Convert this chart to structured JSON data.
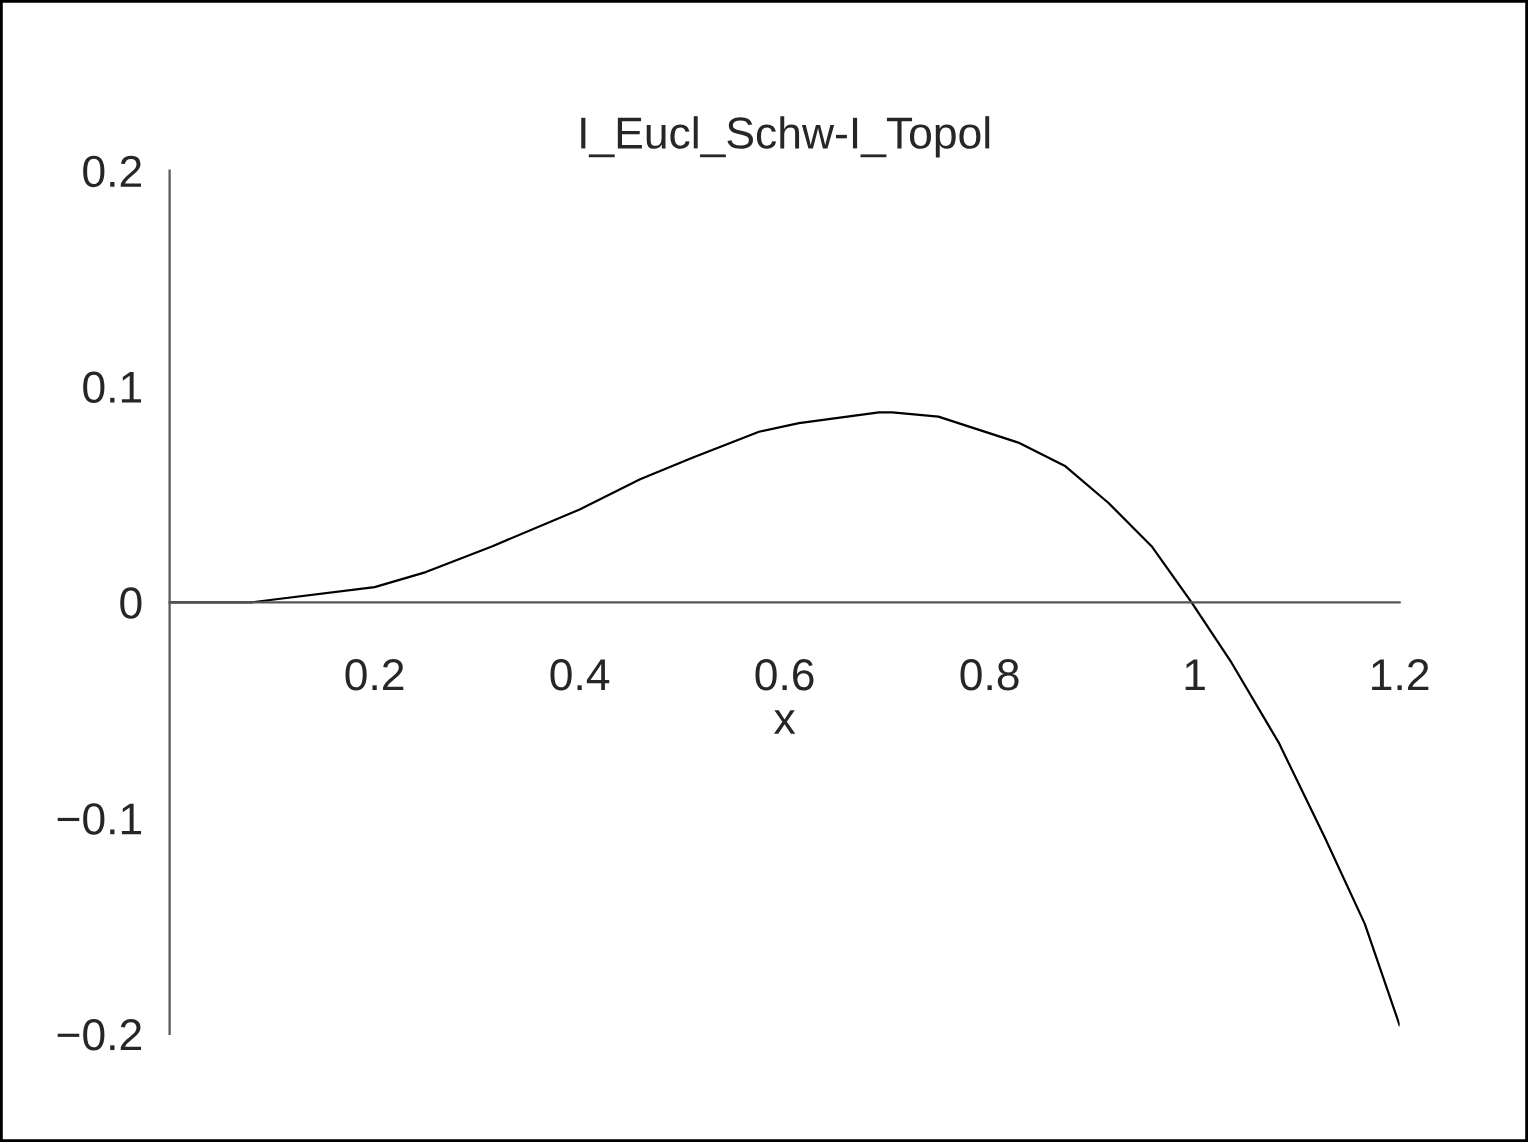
{
  "chart_data": {
    "type": "line",
    "title": "I_Eucl_Schw-I_Topol",
    "xlabel": "x",
    "xlim": [
      0,
      1.2
    ],
    "ylim": [
      -0.2,
      0.2
    ],
    "xticks": [
      0.2,
      0.4,
      0.6,
      0.8,
      1,
      1.2
    ],
    "yticks": [
      -0.2,
      -0.1,
      0,
      0.1,
      0.2
    ],
    "grid": false,
    "legend": false,
    "marker": "none",
    "line_style": "solid",
    "series": [
      {
        "color": "#000000",
        "x": [
          0,
          0.08,
          0.2,
          0.25,
          0.315,
          0.4,
          0.459,
          0.51,
          0.575,
          0.614,
          0.692,
          0.705,
          0.75,
          0.828,
          0.874,
          0.916,
          0.958,
          0.997,
          1.036,
          1.082,
          1.127,
          1.166,
          1.2
        ],
        "values": [
          0,
          0,
          0.007,
          0.014,
          0.026,
          0.043,
          0.057,
          0.067,
          0.079,
          0.083,
          0.088,
          0.088,
          0.086,
          0.074,
          0.063,
          0.046,
          0.026,
          0,
          -0.028,
          -0.065,
          -0.109,
          -0.149,
          -0.196
        ]
      }
    ]
  }
}
